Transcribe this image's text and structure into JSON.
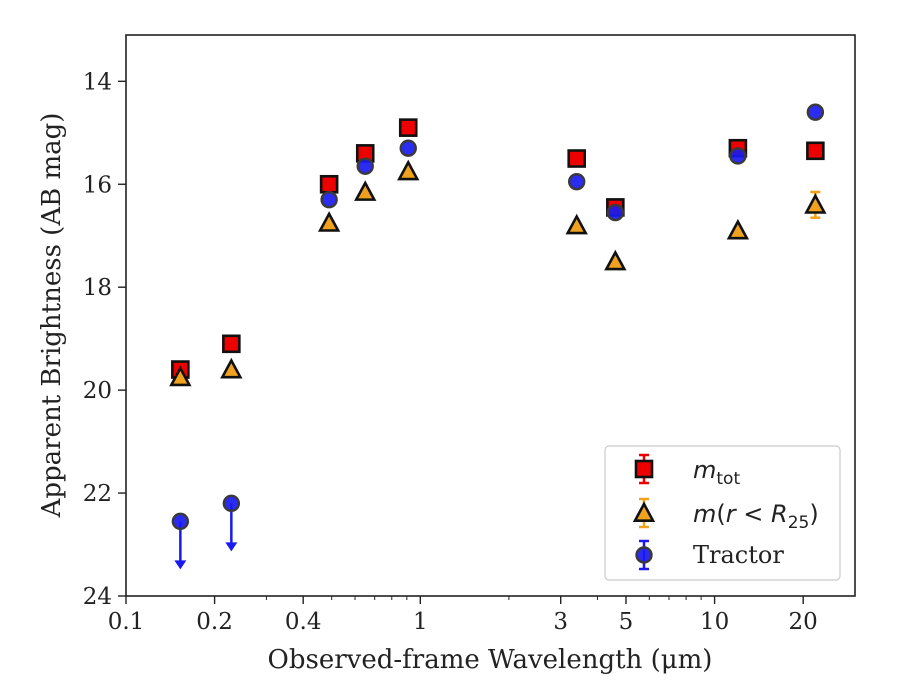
{
  "chart_data": {
    "type": "scatter",
    "xlabel": "Observed-frame Wavelength (μm)",
    "ylabel": "Apparent Brightness (AB mag)",
    "xscale": "log",
    "xlim": [
      0.1,
      30
    ],
    "ylim": [
      24,
      13.1
    ],
    "y_inverted": true,
    "x_ticks": [
      0.1,
      0.2,
      0.4,
      1,
      3,
      5,
      10,
      20
    ],
    "x_tick_labels": [
      "0.1",
      "0.2",
      "0.4",
      "1",
      "3",
      "5",
      "10",
      "20"
    ],
    "y_ticks": [
      14,
      16,
      18,
      20,
      22,
      24
    ],
    "y_tick_labels": [
      "14",
      "16",
      "18",
      "20",
      "22",
      "24"
    ],
    "grid": false,
    "legend_position": "lower-right",
    "series": [
      {
        "name": "m_tot",
        "marker": "square",
        "color": "#ee0000",
        "edge_color": "#111111",
        "points": [
          {
            "x": 0.153,
            "y": 19.6
          },
          {
            "x": 0.228,
            "y": 19.1
          },
          {
            "x": 0.49,
            "y": 16.0
          },
          {
            "x": 0.65,
            "y": 15.4
          },
          {
            "x": 0.91,
            "y": 14.9
          },
          {
            "x": 3.4,
            "y": 15.5
          },
          {
            "x": 4.6,
            "y": 16.45
          },
          {
            "x": 12.0,
            "y": 15.3
          },
          {
            "x": 22.0,
            "y": 15.35
          }
        ]
      },
      {
        "name": "m(r < R_25)",
        "marker": "triangle",
        "color": "#f0a21e",
        "edge_color": "#111111",
        "points": [
          {
            "x": 0.153,
            "y": 19.75
          },
          {
            "x": 0.228,
            "y": 19.6
          },
          {
            "x": 0.49,
            "y": 16.75
          },
          {
            "x": 0.65,
            "y": 16.15
          },
          {
            "x": 0.91,
            "y": 15.75
          },
          {
            "x": 3.4,
            "y": 16.8
          },
          {
            "x": 4.6,
            "y": 17.5
          },
          {
            "x": 12.0,
            "y": 16.9
          },
          {
            "x": 22.0,
            "y": 16.4,
            "err": 0.25
          }
        ]
      },
      {
        "name": "Tractor",
        "marker": "circle",
        "color": "#1a1af0",
        "edge_color": "#3a3a3a",
        "points": [
          {
            "x": 0.153,
            "y": 22.55,
            "upper_limit": true
          },
          {
            "x": 0.228,
            "y": 22.2,
            "upper_limit": true
          },
          {
            "x": 0.49,
            "y": 16.3
          },
          {
            "x": 0.65,
            "y": 15.65
          },
          {
            "x": 0.91,
            "y": 15.3
          },
          {
            "x": 3.4,
            "y": 15.95
          },
          {
            "x": 4.6,
            "y": 16.55
          },
          {
            "x": 12.0,
            "y": 15.45
          },
          {
            "x": 22.0,
            "y": 14.6
          }
        ]
      }
    ]
  }
}
